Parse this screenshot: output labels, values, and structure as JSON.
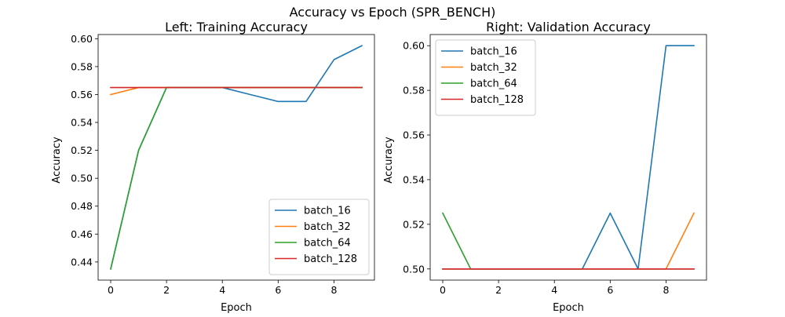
{
  "figure_title": "Accuracy vs Epoch (SPR_BENCH)",
  "colors": {
    "batch_16": "#1f77b4",
    "batch_32": "#ff7f0e",
    "batch_64": "#2ca02c",
    "batch_128": "#d62728"
  },
  "chart_data": [
    {
      "type": "line",
      "title": "Left: Training Accuracy",
      "xlabel": "Epoch",
      "ylabel": "Accuracy",
      "xlim": [
        -0.45,
        9.45
      ],
      "ylim": [
        0.427,
        0.603
      ],
      "xticks": [
        0,
        2,
        4,
        6,
        8
      ],
      "yticks": [
        0.44,
        0.46,
        0.48,
        0.5,
        0.52,
        0.54,
        0.56,
        0.58,
        0.6
      ],
      "ytick_labels": [
        "0.44",
        "0.46",
        "0.48",
        "0.50",
        "0.52",
        "0.54",
        "0.56",
        "0.58",
        "0.60"
      ],
      "grid": false,
      "legend_position": "lower-right",
      "x": [
        0,
        1,
        2,
        3,
        4,
        5,
        6,
        7,
        8,
        9
      ],
      "series": [
        {
          "name": "batch_16",
          "color": "#1f77b4",
          "values": [
            0.435,
            0.52,
            0.565,
            0.565,
            0.565,
            0.56,
            0.555,
            0.555,
            0.585,
            0.595
          ]
        },
        {
          "name": "batch_32",
          "color": "#ff7f0e",
          "values": [
            0.56,
            0.565,
            0.565,
            0.565,
            0.565,
            0.565,
            0.565,
            0.565,
            0.565,
            0.565
          ]
        },
        {
          "name": "batch_64",
          "color": "#2ca02c",
          "values": [
            0.435,
            0.52,
            0.565,
            0.565,
            0.565,
            0.565,
            0.565,
            0.565,
            0.565,
            0.565
          ]
        },
        {
          "name": "batch_128",
          "color": "#d62728",
          "values": [
            0.565,
            0.565,
            0.565,
            0.565,
            0.565,
            0.565,
            0.565,
            0.565,
            0.565,
            0.565
          ]
        }
      ]
    },
    {
      "type": "line",
      "title": "Right: Validation Accuracy",
      "xlabel": "Epoch",
      "ylabel": "Accuracy",
      "xlim": [
        -0.45,
        9.45
      ],
      "ylim": [
        0.495,
        0.605
      ],
      "xticks": [
        0,
        2,
        4,
        6,
        8
      ],
      "yticks": [
        0.5,
        0.52,
        0.54,
        0.56,
        0.58,
        0.6
      ],
      "ytick_labels": [
        "0.50",
        "0.52",
        "0.54",
        "0.56",
        "0.58",
        "0.60"
      ],
      "grid": false,
      "legend_position": "upper-left",
      "x": [
        0,
        1,
        2,
        3,
        4,
        5,
        6,
        7,
        8,
        9
      ],
      "series": [
        {
          "name": "batch_16",
          "color": "#1f77b4",
          "values": [
            0.5,
            0.5,
            0.5,
            0.5,
            0.5,
            0.5,
            0.525,
            0.5,
            0.6,
            0.6
          ]
        },
        {
          "name": "batch_32",
          "color": "#ff7f0e",
          "values": [
            0.5,
            0.5,
            0.5,
            0.5,
            0.5,
            0.5,
            0.5,
            0.5,
            0.5,
            0.525
          ]
        },
        {
          "name": "batch_64",
          "color": "#2ca02c",
          "values": [
            0.525,
            0.5,
            0.5,
            0.5,
            0.5,
            0.5,
            0.5,
            0.5,
            0.5,
            0.5
          ]
        },
        {
          "name": "batch_128",
          "color": "#d62728",
          "values": [
            0.5,
            0.5,
            0.5,
            0.5,
            0.5,
            0.5,
            0.5,
            0.5,
            0.5,
            0.5
          ]
        }
      ]
    }
  ]
}
